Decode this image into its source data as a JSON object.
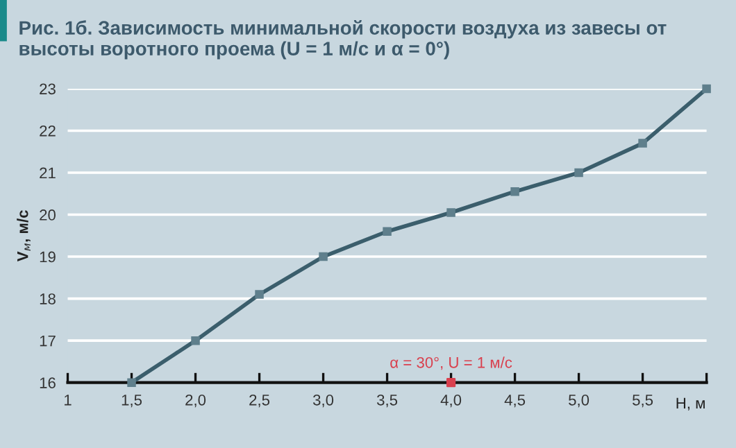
{
  "chart_data": {
    "type": "line",
    "title": "Рис. 1б. Зависимость минимальной скорости воздуха из завесы от высоты воротного проема (U = 1 м/с и α = 0°)",
    "xlabel": "H, м",
    "ylabel": "V$_{м}$, м/с",
    "x": [
      1.5,
      2.0,
      2.5,
      3.0,
      3.5,
      4.0,
      4.5,
      5.0,
      5.5,
      6.0
    ],
    "series": [
      {
        "color": "#3b5e6c",
        "values": [
          16.0,
          17.0,
          18.1,
          19.0,
          19.6,
          20.05,
          20.55,
          21.0,
          21.7,
          23.0
        ]
      },
      {
        "type": "scatter",
        "color": "#d9404e",
        "x": [
          4.0
        ],
        "values": [
          16.0
        ]
      }
    ],
    "annotations": [
      {
        "text": "α = 30°, U = 1 м/с",
        "x": 4.0,
        "y": 16.0
      }
    ],
    "xlim": [
      1,
      6
    ],
    "ylim": [
      16,
      23
    ],
    "xticks": [
      1,
      {
        "value": 1.5,
        "label": "1,5"
      },
      {
        "value": 2.0,
        "label": "2,0"
      },
      {
        "value": 2.5,
        "label": "2,5"
      },
      {
        "value": 3.0,
        "label": "3,0"
      },
      {
        "value": 3.5,
        "label": "3,5"
      },
      {
        "value": 4.0,
        "label": "4,0"
      },
      {
        "value": 4.5,
        "label": "4,5"
      },
      {
        "value": 5.0,
        "label": "5,0"
      },
      {
        "value": 5.5,
        "label": "5,5"
      },
      {
        "value": 6.0,
        "label": null
      }
    ],
    "yticks": [
      16,
      17,
      18,
      19,
      20,
      21,
      22,
      23
    ],
    "grid": "y",
    "marker": "square",
    "line_style": "solid"
  }
}
